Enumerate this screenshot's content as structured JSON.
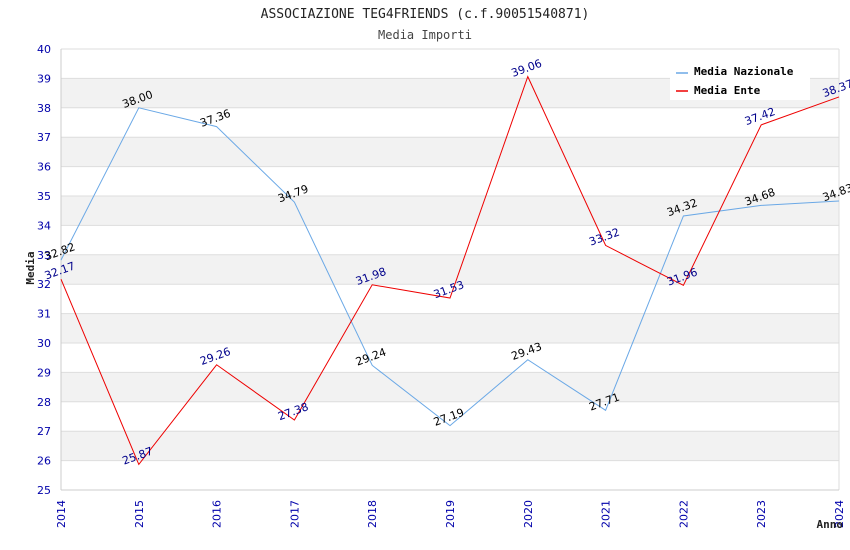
{
  "chart_data": {
    "type": "line",
    "title": "ASSOCIAZIONE TEG4FRIENDS (c.f.90051540871)",
    "subtitle": "Media Importi",
    "xlabel": "Anno",
    "ylabel": "Media",
    "categories": [
      "2014",
      "2015",
      "2016",
      "2017",
      "2018",
      "2019",
      "2020",
      "2021",
      "2022",
      "2023",
      "2024"
    ],
    "ylim": [
      25,
      40
    ],
    "yticks": [
      25,
      26,
      27,
      28,
      29,
      30,
      31,
      32,
      33,
      34,
      35,
      36,
      37,
      38,
      39,
      40
    ],
    "grid": true,
    "legend_position": "top-right",
    "series": [
      {
        "name": "Media Nazionale",
        "color": "#6aa8e6",
        "label_color": "#000000",
        "values": [
          32.82,
          38.0,
          37.36,
          34.79,
          29.24,
          27.19,
          29.43,
          27.71,
          34.32,
          34.68,
          34.83
        ],
        "labels": [
          "32.82",
          "38.00",
          "37.36",
          "34.79",
          "29.24",
          "27.19",
          "29.43",
          "27.71",
          "34.32",
          "34.68",
          "34.83"
        ]
      },
      {
        "name": "Media Ente",
        "color": "#ee0000",
        "label_color": "#00008b",
        "values": [
          32.17,
          25.87,
          29.26,
          27.38,
          31.98,
          31.53,
          39.06,
          33.32,
          31.96,
          37.42,
          38.37
        ],
        "labels": [
          "32.17",
          "25.87",
          "29.26",
          "27.38",
          "31.98",
          "31.53",
          "39.06",
          "33.32",
          "31.96",
          "37.42",
          "38.37"
        ]
      }
    ]
  }
}
